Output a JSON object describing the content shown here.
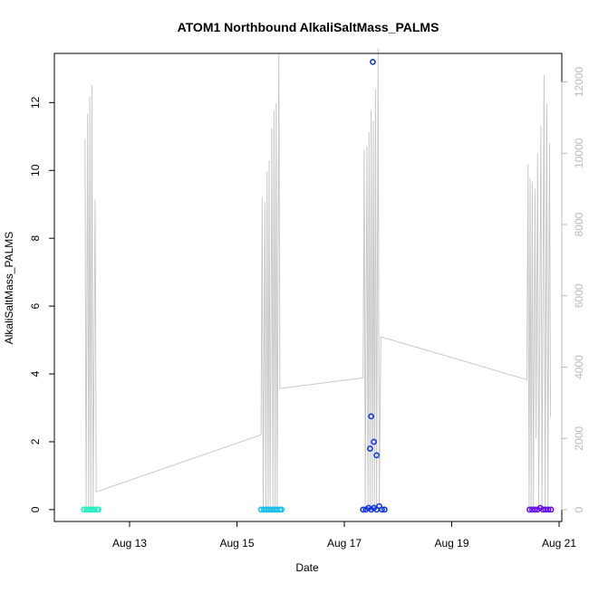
{
  "chart_data": {
    "type": "scatter",
    "title": "ATOM1 Northbound AlkaliSaltMass_PALMS",
    "xlabel": "Date",
    "ylabel": "AlkaliSaltMass_PALMS",
    "x_ticks": [
      {
        "day": 13,
        "label": "Aug 13"
      },
      {
        "day": 15,
        "label": "Aug 15"
      },
      {
        "day": 17,
        "label": "Aug 17"
      },
      {
        "day": 19,
        "label": "Aug 19"
      },
      {
        "day": 21,
        "label": "Aug 21"
      }
    ],
    "y_ticks": [
      0,
      2,
      4,
      6,
      8,
      10,
      12
    ],
    "ylim": [
      -0.35,
      13.45
    ],
    "xlim_day": [
      11.6,
      21.05
    ],
    "y2_ticks": [
      0,
      2000,
      4000,
      6000,
      8000,
      10000,
      12000
    ],
    "y2_lim": [
      -330,
      12800
    ],
    "grid": false,
    "series": [
      {
        "color": "#22f0c0",
        "points": [
          [
            12.15,
            0.0
          ],
          [
            12.2,
            0.0
          ],
          [
            12.25,
            0.0
          ],
          [
            12.3,
            0.0
          ],
          [
            12.35,
            0.0
          ],
          [
            12.4,
            0.0
          ],
          [
            12.42,
            0.0
          ]
        ]
      },
      {
        "color": "#14bff0",
        "points": [
          [
            15.45,
            0.0
          ],
          [
            15.5,
            0.0
          ],
          [
            15.55,
            0.0
          ],
          [
            15.6,
            0.0
          ],
          [
            15.65,
            0.0
          ],
          [
            15.7,
            0.0
          ],
          [
            15.75,
            0.0
          ],
          [
            15.8,
            0.0
          ],
          [
            15.83,
            0.0
          ]
        ]
      },
      {
        "color": "#1238e0",
        "points": [
          [
            17.35,
            0.0
          ],
          [
            17.4,
            0.0
          ],
          [
            17.45,
            0.05
          ],
          [
            17.5,
            0.0
          ],
          [
            17.55,
            0.05
          ],
          [
            17.6,
            0.0
          ],
          [
            17.65,
            0.1
          ],
          [
            17.7,
            0.0
          ],
          [
            17.75,
            0.0
          ],
          [
            17.5,
            2.75
          ],
          [
            17.53,
            13.2
          ],
          [
            17.55,
            2.0
          ],
          [
            17.48,
            1.8
          ],
          [
            17.6,
            1.6
          ]
        ]
      },
      {
        "color": "#6a12e8",
        "points": [
          [
            20.45,
            0.0
          ],
          [
            20.5,
            0.0
          ],
          [
            20.55,
            0.0
          ],
          [
            20.6,
            0.0
          ],
          [
            20.65,
            0.05
          ],
          [
            20.7,
            0.0
          ],
          [
            20.75,
            0.0
          ],
          [
            20.8,
            0.0
          ],
          [
            20.85,
            0.0
          ]
        ]
      }
    ],
    "secondary_line": {
      "color": "#c8c8c8",
      "points": [
        [
          12.17,
          10400
        ],
        [
          12.19,
          0
        ],
        [
          12.22,
          11100
        ],
        [
          12.24,
          0
        ],
        [
          12.26,
          11600
        ],
        [
          12.28,
          0
        ],
        [
          12.3,
          11900
        ],
        [
          12.32,
          0
        ],
        [
          12.36,
          8700
        ],
        [
          12.38,
          500
        ],
        [
          15.45,
          2100
        ],
        [
          15.47,
          8750
        ],
        [
          15.49,
          0
        ],
        [
          15.52,
          8650
        ],
        [
          15.54,
          0
        ],
        [
          15.56,
          9500
        ],
        [
          15.58,
          0
        ],
        [
          15.6,
          9800
        ],
        [
          15.62,
          0
        ],
        [
          15.65,
          10700
        ],
        [
          15.67,
          0
        ],
        [
          15.69,
          11200
        ],
        [
          15.71,
          0
        ],
        [
          15.73,
          11400
        ],
        [
          15.75,
          0
        ],
        [
          15.78,
          12800
        ],
        [
          15.8,
          3400
        ],
        [
          17.35,
          3700
        ],
        [
          17.37,
          10100
        ],
        [
          17.39,
          0
        ],
        [
          17.42,
          10200
        ],
        [
          17.44,
          0
        ],
        [
          17.46,
          10600
        ],
        [
          17.48,
          0
        ],
        [
          17.5,
          11200
        ],
        [
          17.52,
          0
        ],
        [
          17.54,
          10900
        ],
        [
          17.56,
          0
        ],
        [
          17.58,
          11800
        ],
        [
          17.6,
          0
        ],
        [
          17.63,
          12950
        ],
        [
          17.65,
          0
        ],
        [
          17.68,
          4850
        ],
        [
          20.4,
          3650
        ],
        [
          20.42,
          9700
        ],
        [
          20.44,
          0
        ],
        [
          20.46,
          9300
        ],
        [
          20.48,
          0
        ],
        [
          20.5,
          9200
        ],
        [
          20.52,
          0
        ],
        [
          20.55,
          9000
        ],
        [
          20.57,
          2000
        ],
        [
          20.6,
          10000
        ],
        [
          20.62,
          0
        ],
        [
          20.66,
          10800
        ],
        [
          20.68,
          0
        ],
        [
          20.72,
          12200
        ],
        [
          20.74,
          0
        ],
        [
          20.77,
          11400
        ],
        [
          20.79,
          0
        ],
        [
          20.82,
          10300
        ],
        [
          20.84,
          2600
        ]
      ]
    }
  }
}
